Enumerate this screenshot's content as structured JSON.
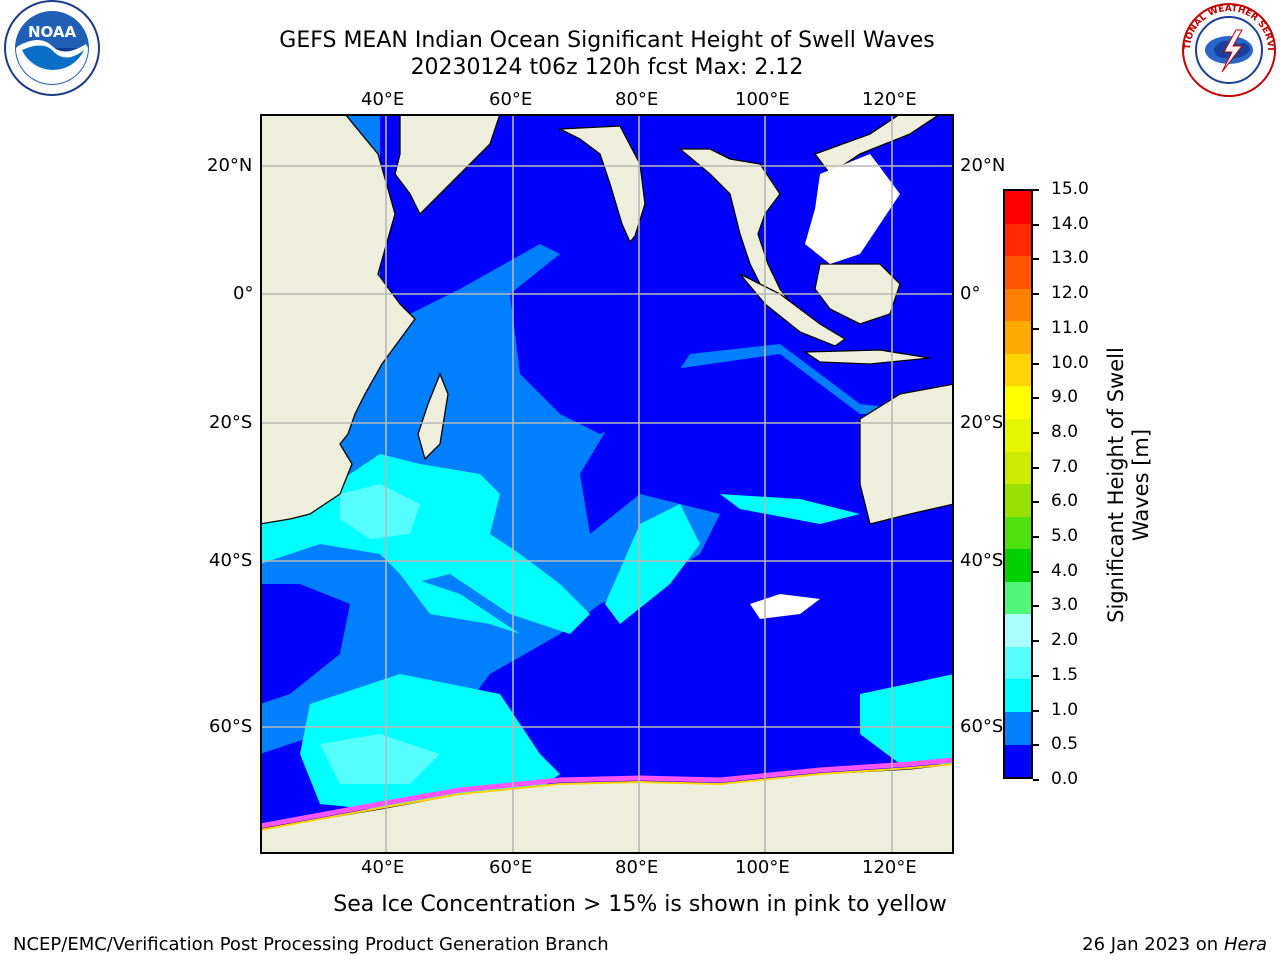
{
  "header": {
    "title_line1": "GEFS MEAN Indian Ocean Significant Height of Swell Waves",
    "title_line2": "20230124 t06z 120h fcst   Max: 2.12"
  },
  "logos": {
    "left": {
      "name": "noaa-logo-icon",
      "text": "NOAA"
    },
    "right": {
      "name": "nws-logo-icon",
      "text": "NATIONAL WEATHER SERVICE"
    }
  },
  "map": {
    "lon_labels": [
      "40°E",
      "60°E",
      "80°E",
      "100°E",
      "120°E"
    ],
    "lat_labels": [
      "20°N",
      "0°",
      "20°S",
      "40°S",
      "60°S"
    ],
    "colors": {
      "land": "#eeeedd",
      "ice": "#ffffff",
      "grid": "#b8b8b8"
    }
  },
  "colorbar": {
    "label_line1": "Significant Height of Swell",
    "label_line2": "Waves [m]",
    "ticks": [
      "15.0",
      "14.0",
      "13.0",
      "12.0",
      "11.0",
      "10.0",
      "9.0",
      "8.0",
      "7.0",
      "6.0",
      "5.0",
      "4.0",
      "3.0",
      "2.0",
      "1.5",
      "1.0",
      "0.5",
      "0.0"
    ],
    "colors_top_to_bottom": [
      "#ff0000",
      "#ff2a00",
      "#ff5500",
      "#ff8000",
      "#ffaa00",
      "#ffd400",
      "#ffff00",
      "#e6f500",
      "#cceb00",
      "#99e000",
      "#4fe010",
      "#00d000",
      "#4ff87a",
      "#aaffff",
      "#55ffff",
      "#00ffff",
      "#0080ff",
      "#0000ff"
    ]
  },
  "note": "Sea Ice Concentration > 15% is shown in pink to yellow",
  "footer": {
    "left": "NCEP/EMC/Verification Post Processing Product Generation Branch",
    "date": "26 Jan 2023 on ",
    "host": "Hera"
  }
}
